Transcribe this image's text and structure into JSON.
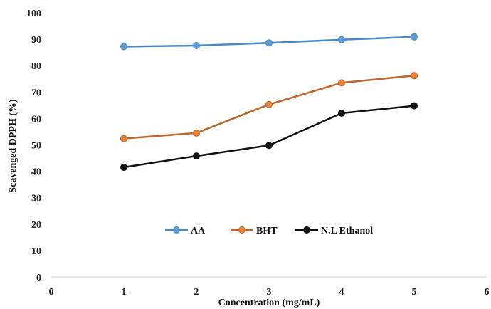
{
  "chart_data": {
    "type": "line",
    "title": "",
    "xlabel": "Concentration (mg/mL)",
    "ylabel": "Scavenged DPPH (%)",
    "xlim": [
      0,
      6
    ],
    "ylim": [
      0,
      100
    ],
    "xticks": [
      "0",
      "1",
      "2",
      "3",
      "4",
      "5",
      "6"
    ],
    "yticks": [
      "0",
      "10",
      "20",
      "30",
      "40",
      "50",
      "60",
      "70",
      "80",
      "90",
      "100"
    ],
    "grid": false,
    "legend_position": "inside-bottom-center",
    "x": [
      1,
      2,
      3,
      4,
      5
    ],
    "series": [
      {
        "name": "AA",
        "color": "#4a89c8",
        "marker_color": "#5b9bd5",
        "values": [
          87.2,
          87.6,
          88.6,
          89.8,
          90.9
        ]
      },
      {
        "name": "BHT",
        "color": "#c0652b",
        "marker_color": "#ed7d31",
        "values": [
          52.4,
          54.5,
          65.3,
          73.5,
          76.2
        ]
      },
      {
        "name": "N.L Ethanol",
        "color": "#111111",
        "marker_color": "#111111",
        "values": [
          41.5,
          45.8,
          49.8,
          62.0,
          64.8
        ]
      }
    ]
  }
}
